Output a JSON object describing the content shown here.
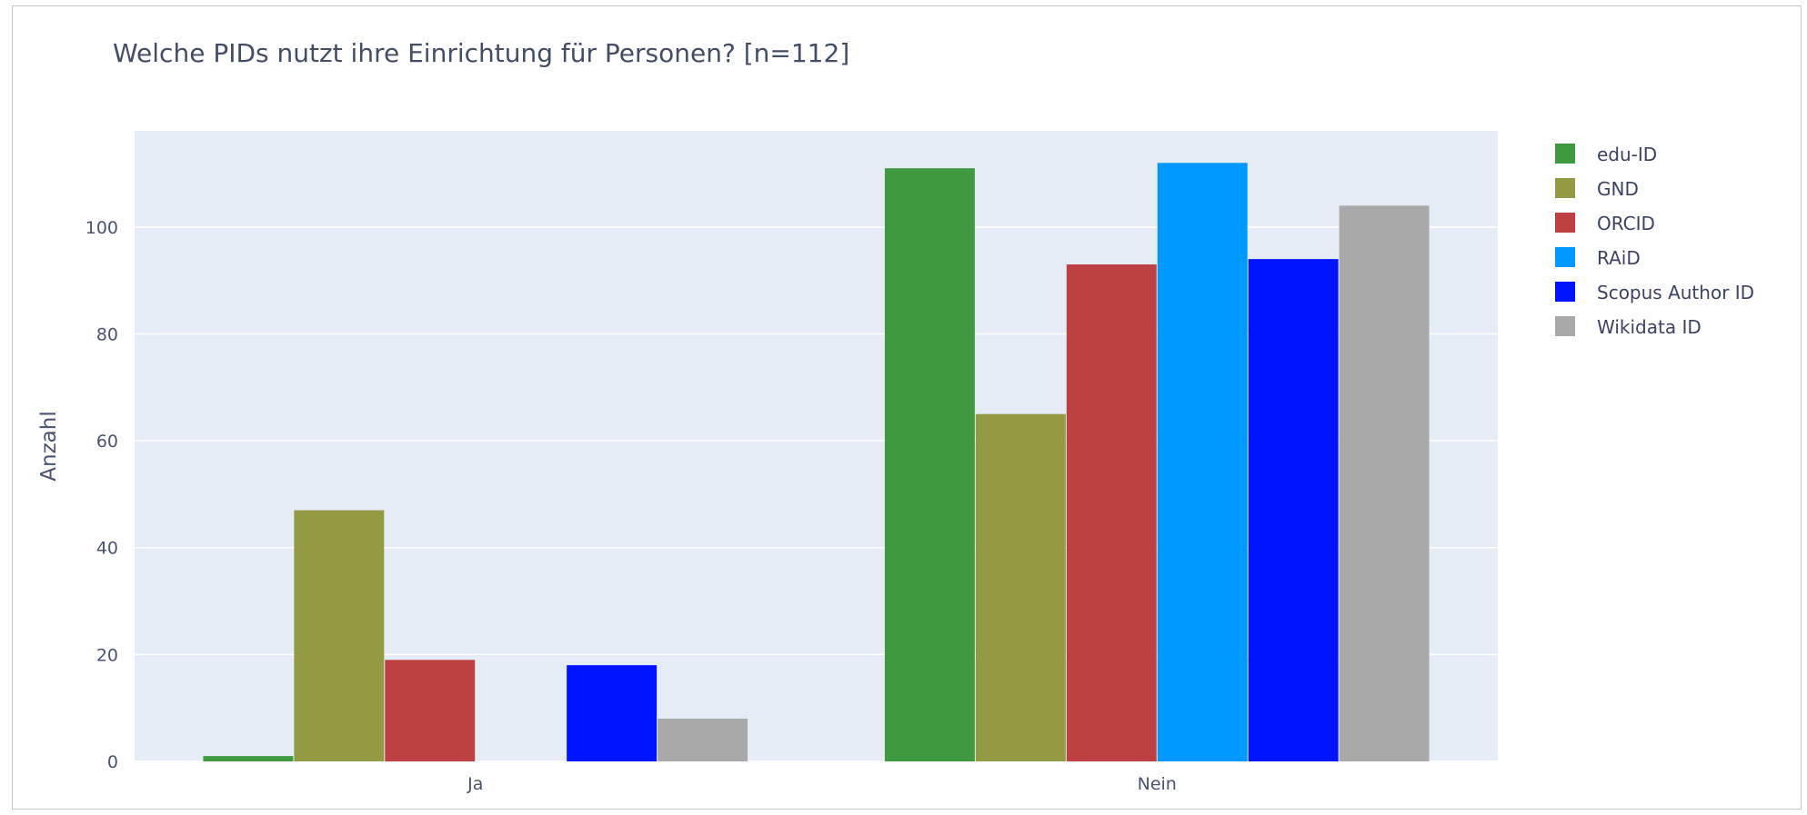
{
  "chart_data": {
    "type": "bar",
    "title": "Welche PIDs nutzt ihre Einrichtung für Personen? [n=112]",
    "xlabel": "",
    "ylabel": "Anzahl",
    "categories": [
      "Ja",
      "Nein"
    ],
    "ylim": [
      0,
      118
    ],
    "yticks": [
      0,
      20,
      40,
      60,
      80,
      100
    ],
    "grid": true,
    "legend_position": "right",
    "series": [
      {
        "name": "edu-ID",
        "color": "#3f9a3f",
        "values": [
          1,
          111
        ]
      },
      {
        "name": "GND",
        "color": "#939a42",
        "values": [
          47,
          65
        ]
      },
      {
        "name": "ORCID",
        "color": "#bd4142",
        "values": [
          19,
          93
        ]
      },
      {
        "name": "RAiD",
        "color": "#0099ff",
        "values": [
          0,
          112
        ]
      },
      {
        "name": "Scopus Author ID",
        "color": "#0013ff",
        "values": [
          18,
          94
        ]
      },
      {
        "name": "Wikidata ID",
        "color": "#a9a9a9",
        "values": [
          8,
          104
        ]
      }
    ]
  }
}
